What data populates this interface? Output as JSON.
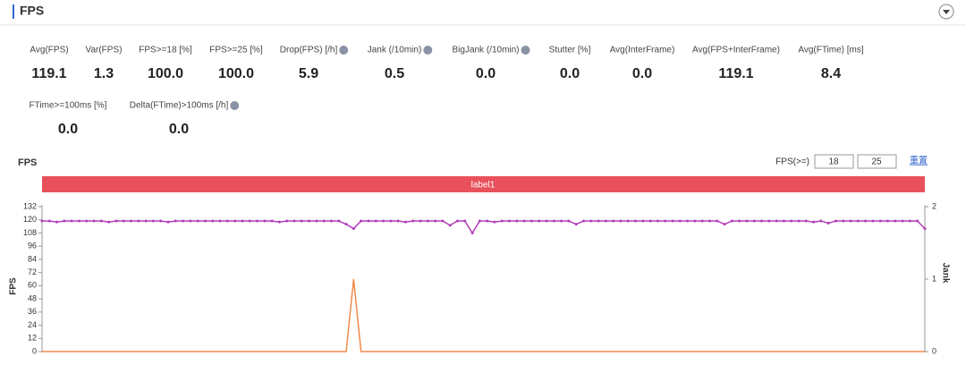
{
  "header": {
    "title": "FPS"
  },
  "metrics": [
    {
      "label": "Avg(FPS)",
      "value": "119.1"
    },
    {
      "label": "Var(FPS)",
      "value": "1.3"
    },
    {
      "label": "FPS>=18 [%]",
      "value": "100.0"
    },
    {
      "label": "FPS>=25 [%]",
      "value": "100.0"
    },
    {
      "label": "Drop(FPS) [/h]",
      "value": "5.9"
    },
    {
      "label": "Jank (/10min)",
      "value": "0.5"
    },
    {
      "label": "BigJank (/10min)",
      "value": "0.0"
    },
    {
      "label": "Stutter [%]",
      "value": "0.0"
    },
    {
      "label": "Avg(InterFrame)",
      "value": "0.0"
    },
    {
      "label": "Avg(FPS+InterFrame)",
      "value": "119.1"
    },
    {
      "label": "Avg(FTime) [ms]",
      "value": "8.4"
    },
    {
      "label": "FTime>=100ms [%]",
      "value": "0.0"
    },
    {
      "label": "Delta(FTime)>100ms [/h]",
      "value": "0.0"
    }
  ],
  "controls": {
    "threshold_label": "FPS(>=)",
    "threshold1": "18",
    "threshold2": "25",
    "reset": "重置"
  },
  "chart_data": {
    "type": "line",
    "title": "FPS",
    "band_label": "label1",
    "ylabel": "FPS",
    "y2label": "Jank",
    "ylim": [
      0,
      132
    ],
    "yticks": [
      0,
      12,
      24,
      36,
      48,
      60,
      72,
      84,
      96,
      108,
      120,
      132
    ],
    "y2lim": [
      0,
      2
    ],
    "y2ticks": [
      0,
      1,
      2
    ],
    "series": [
      {
        "name": "FPS",
        "color": "#b23cb8",
        "values": [
          119,
          119,
          118,
          119,
          119,
          119,
          119,
          119,
          119,
          118,
          119,
          119,
          119,
          119,
          119,
          119,
          119,
          118,
          119,
          119,
          119,
          119,
          119,
          119,
          119,
          119,
          119,
          119,
          119,
          119,
          119,
          119,
          118,
          119,
          119,
          119,
          119,
          119,
          119,
          119,
          119,
          116,
          112,
          119,
          119,
          119,
          119,
          119,
          119,
          118,
          119,
          119,
          119,
          119,
          119,
          115,
          119,
          119,
          108,
          119,
          119,
          118,
          119,
          119,
          119,
          119,
          119,
          119,
          119,
          119,
          119,
          119,
          116,
          119,
          119,
          119,
          119,
          119,
          119,
          119,
          119,
          119,
          119,
          119,
          119,
          119,
          119,
          119,
          119,
          119,
          119,
          119,
          116,
          119,
          119,
          119,
          119,
          119,
          119,
          119,
          119,
          119,
          119,
          119,
          118,
          119,
          117,
          119,
          119,
          119,
          119,
          119,
          119,
          119,
          119,
          119,
          119,
          119,
          119,
          112
        ]
      },
      {
        "name": "Jank",
        "color": "#f08a4b",
        "axis": "y2",
        "values": [
          0,
          0,
          0,
          0,
          0,
          0,
          0,
          0,
          0,
          0,
          0,
          0,
          0,
          0,
          0,
          0,
          0,
          0,
          0,
          0,
          0,
          0,
          0,
          0,
          0,
          0,
          0,
          0,
          0,
          0,
          0,
          0,
          0,
          0,
          0,
          0,
          0,
          0,
          0,
          0,
          0,
          0,
          1,
          0,
          0,
          0,
          0,
          0,
          0,
          0,
          0,
          0,
          0,
          0,
          0,
          0,
          0,
          0,
          0,
          0,
          0,
          0,
          0,
          0,
          0,
          0,
          0,
          0,
          0,
          0,
          0,
          0,
          0,
          0,
          0,
          0,
          0,
          0,
          0,
          0,
          0,
          0,
          0,
          0,
          0,
          0,
          0,
          0,
          0,
          0,
          0,
          0,
          0,
          0,
          0,
          0,
          0,
          0,
          0,
          0,
          0,
          0,
          0,
          0,
          0,
          0,
          0,
          0,
          0,
          0,
          0,
          0,
          0,
          0,
          0,
          0,
          0,
          0,
          0,
          0
        ]
      }
    ]
  }
}
